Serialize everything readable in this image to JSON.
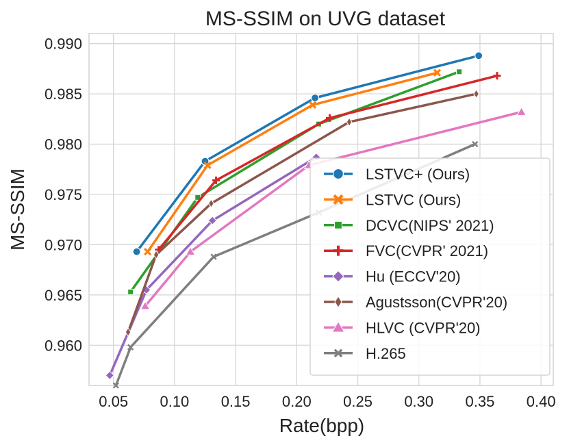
{
  "chart_data": {
    "type": "line",
    "title": "MS-SSIM on UVG dataset",
    "xlabel": "Rate(bpp)",
    "ylabel": "MS-SSIM",
    "xlim": [
      0.03,
      0.41
    ],
    "ylim": [
      0.956,
      0.991
    ],
    "xticks": [
      0.05,
      0.1,
      0.15,
      0.2,
      0.25,
      0.3,
      0.35,
      0.4
    ],
    "xtick_labels": [
      "0.05",
      "0.10",
      "0.15",
      "0.20",
      "0.25",
      "0.30",
      "0.35",
      "0.40"
    ],
    "yticks": [
      0.96,
      0.965,
      0.97,
      0.975,
      0.98,
      0.985,
      0.99
    ],
    "ytick_labels": [
      "0.960",
      "0.965",
      "0.970",
      "0.975",
      "0.980",
      "0.985",
      "0.990"
    ],
    "grid": true,
    "legend_position": "lower-right",
    "series": [
      {
        "name": "LSTVC+ (Ours)",
        "color": "#1f77b4",
        "marker": "circle",
        "x": [
          0.069,
          0.125,
          0.215,
          0.349
        ],
        "y": [
          0.9693,
          0.9783,
          0.9846,
          0.9888
        ]
      },
      {
        "name": "LSTVC (Ours)",
        "color": "#ff7f0e",
        "marker": "x",
        "x": [
          0.078,
          0.127,
          0.213,
          0.315
        ],
        "y": [
          0.9693,
          0.9779,
          0.9839,
          0.9871
        ]
      },
      {
        "name": "DCVC(NIPS' 2021)",
        "color": "#2ca02c",
        "marker": "square",
        "x": [
          0.064,
          0.119,
          0.218,
          0.333
        ],
        "y": [
          0.9653,
          0.9747,
          0.982,
          0.9872
        ]
      },
      {
        "name": "FVC(CVPR' 2021)",
        "color": "#d62728",
        "marker": "plus",
        "x": [
          0.087,
          0.134,
          0.227,
          0.364
        ],
        "y": [
          0.9695,
          0.9764,
          0.9826,
          0.9868
        ]
      },
      {
        "name": "Hu (ECCV'20)",
        "color": "#9467bd",
        "marker": "diamond",
        "x": [
          0.047,
          0.077,
          0.131,
          0.216
        ],
        "y": [
          0.957,
          0.9655,
          0.9724,
          0.9787
        ]
      },
      {
        "name": "Agustsson(CVPR'20)",
        "color": "#8c564b",
        "marker": "thin-diamond",
        "x": [
          0.062,
          0.085,
          0.13,
          0.243,
          0.347
        ],
        "y": [
          0.9613,
          0.969,
          0.9741,
          0.9822,
          0.985
        ]
      },
      {
        "name": "HLVC (CVPR'20)",
        "color": "#e377c2",
        "marker": "triangle",
        "x": [
          0.076,
          0.113,
          0.21,
          0.384
        ],
        "y": [
          0.9639,
          0.9693,
          0.9779,
          0.9832
        ]
      },
      {
        "name": "H.265",
        "color": "#7f7f7f",
        "marker": "thin-x",
        "x": [
          0.052,
          0.064,
          0.132,
          0.218,
          0.346
        ],
        "y": [
          0.956,
          0.9598,
          0.9688,
          0.9732,
          0.98
        ]
      }
    ]
  }
}
